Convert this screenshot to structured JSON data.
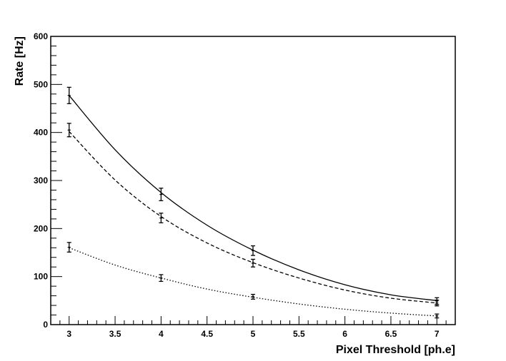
{
  "chart_data": {
    "type": "line",
    "title": "",
    "xlabel": "Pixel Threshold [ph.e]",
    "ylabel": "Rate [Hz]",
    "xlim": [
      2.8,
      7.2
    ],
    "ylim": [
      0,
      600
    ],
    "x_ticks": [
      "3",
      "3.5",
      "4",
      "4.5",
      "5",
      "5.5",
      "6",
      "6.5",
      "7"
    ],
    "y_ticks": [
      "0",
      "100",
      "200",
      "300",
      "400",
      "500",
      "600"
    ],
    "grid": false,
    "legend": false,
    "series": [
      {
        "style": "solid",
        "x": [
          3,
          4,
          5,
          7
        ],
        "y": [
          477,
          271,
          154,
          49
        ],
        "error": [
          17,
          13,
          10,
          7
        ],
        "fit_x": [
          3,
          3.5,
          4,
          4.5,
          5,
          5.5,
          6,
          6.5,
          7
        ],
        "fit_y": [
          477,
          364,
          275,
          207,
          155,
          114,
          83,
          62,
          50
        ]
      },
      {
        "style": "dashed",
        "x": [
          3,
          4,
          5,
          7
        ],
        "y": [
          405,
          222,
          128,
          45
        ],
        "error": [
          14,
          10,
          8,
          6
        ],
        "fit_x": [
          3,
          3.5,
          4,
          4.5,
          5,
          5.5,
          6,
          6.5,
          7
        ],
        "fit_y": [
          402,
          301,
          225,
          170,
          129,
          97,
          72,
          55,
          45
        ]
      },
      {
        "style": "dotted",
        "x": [
          3,
          4,
          5,
          7
        ],
        "y": [
          161,
          97,
          58,
          18
        ],
        "error": [
          10,
          7,
          5,
          4
        ],
        "fit_x": [
          3,
          3.5,
          4,
          4.5,
          5,
          5.5,
          6,
          6.5,
          7
        ],
        "fit_y": [
          160,
          124,
          97,
          74,
          57,
          43,
          32,
          24,
          18
        ]
      }
    ]
  }
}
